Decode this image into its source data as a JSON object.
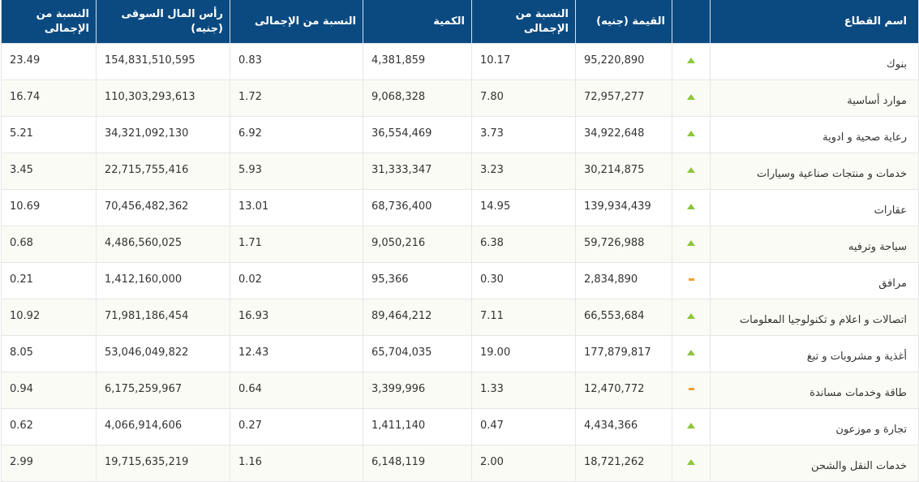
{
  "headers": {
    "sector": "اسم القطاع",
    "value": "القيمة (جنيه)",
    "value_pct": "النسبة من الإجمالى",
    "quantity": "الكمية",
    "quantity_pct": "النسبة من الإجمالى",
    "market_cap": "رأس المال السوقى (جنيه)",
    "market_cap_pct": "النسبة من الإجمالى"
  },
  "colors": {
    "header_bg": "#0b4a80",
    "up": "#8cc63f",
    "flat": "#f0a030"
  },
  "rows": [
    {
      "sector": "بنوك",
      "trend": "up-arrow-icon",
      "value": "95,220,890",
      "value_pct": "10.17",
      "quantity": "4,381,859",
      "quantity_pct": "0.83",
      "market_cap": "154,831,510,595",
      "market_cap_pct": "23.49"
    },
    {
      "sector": "موارد أساسية",
      "trend": "up-arrow-icon",
      "value": "72,957,277",
      "value_pct": "7.80",
      "quantity": "9,068,328",
      "quantity_pct": "1.72",
      "market_cap": "110,303,293,613",
      "market_cap_pct": "16.74"
    },
    {
      "sector": "رعاية صحية و ادوية",
      "trend": "up-arrow-icon",
      "value": "34,922,648",
      "value_pct": "3.73",
      "quantity": "36,554,469",
      "quantity_pct": "6.92",
      "market_cap": "34,321,092,130",
      "market_cap_pct": "5.21"
    },
    {
      "sector": "خدمات و منتجات صناعية وسيارات",
      "trend": "up-arrow-icon",
      "value": "30,214,875",
      "value_pct": "3.23",
      "quantity": "31,333,347",
      "quantity_pct": "5.93",
      "market_cap": "22,715,755,416",
      "market_cap_pct": "3.45"
    },
    {
      "sector": "عقارات",
      "trend": "up-arrow-icon",
      "value": "139,934,439",
      "value_pct": "14.95",
      "quantity": "68,736,400",
      "quantity_pct": "13.01",
      "market_cap": "70,456,482,362",
      "market_cap_pct": "10.69"
    },
    {
      "sector": "سياحة وترفيه",
      "trend": "up-arrow-icon",
      "value": "59,726,988",
      "value_pct": "6.38",
      "quantity": "9,050,216",
      "quantity_pct": "1.71",
      "market_cap": "4,486,560,025",
      "market_cap_pct": "0.68"
    },
    {
      "sector": "مرافق",
      "trend": "flat-dash-icon",
      "value": "2,834,890",
      "value_pct": "0.30",
      "quantity": "95,366",
      "quantity_pct": "0.02",
      "market_cap": "1,412,160,000",
      "market_cap_pct": "0.21"
    },
    {
      "sector": "اتصالات و اعلام و تكنولوجيا المعلومات",
      "trend": "up-arrow-icon",
      "value": "66,553,684",
      "value_pct": "7.11",
      "quantity": "89,464,212",
      "quantity_pct": "16.93",
      "market_cap": "71,981,186,454",
      "market_cap_pct": "10.92"
    },
    {
      "sector": "أغذية و مشروبات و تبغ",
      "trend": "up-arrow-icon",
      "value": "177,879,817",
      "value_pct": "19.00",
      "quantity": "65,704,035",
      "quantity_pct": "12.43",
      "market_cap": "53,046,049,822",
      "market_cap_pct": "8.05"
    },
    {
      "sector": "طاقة وخدمات مساندة",
      "trend": "flat-dash-icon",
      "value": "12,470,772",
      "value_pct": "1.33",
      "quantity": "3,399,996",
      "quantity_pct": "0.64",
      "market_cap": "6,175,259,967",
      "market_cap_pct": "0.94"
    },
    {
      "sector": "تجارة و موزعون",
      "trend": "up-arrow-icon",
      "value": "4,434,366",
      "value_pct": "0.47",
      "quantity": "1,411,140",
      "quantity_pct": "0.27",
      "market_cap": "4,066,914,606",
      "market_cap_pct": "0.62"
    },
    {
      "sector": "خدمات النقل والشحن",
      "trend": "up-arrow-icon",
      "value": "18,721,262",
      "value_pct": "2.00",
      "quantity": "6,148,119",
      "quantity_pct": "1.16",
      "market_cap": "19,715,635,219",
      "market_cap_pct": "2.99"
    }
  ]
}
